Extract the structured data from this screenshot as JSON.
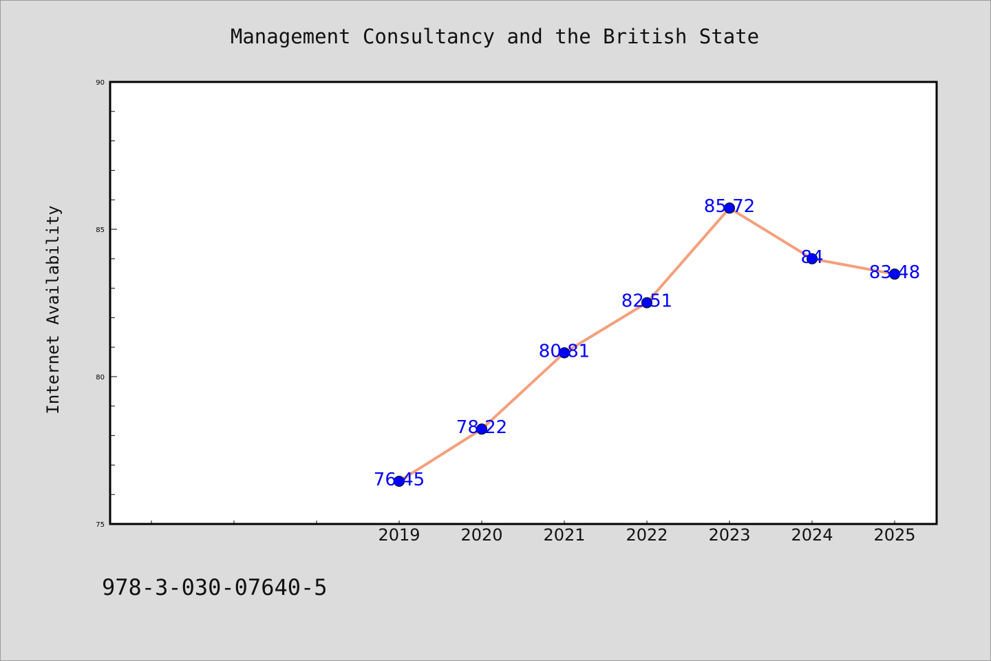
{
  "chart_data": {
    "type": "line",
    "title": "Management Consultancy and the British State",
    "xlabel": "",
    "ylabel": "Internet Availability",
    "x": [
      "2019",
      "2020",
      "2021",
      "2022",
      "2023",
      "2024",
      "2025"
    ],
    "values": [
      76.45,
      78.22,
      80.81,
      82.51,
      85.72,
      84,
      83.48
    ],
    "data_labels": [
      "76.45",
      "78.22",
      "80.81",
      "82.51",
      "85.72",
      "84",
      "83.48"
    ],
    "ylim": [
      75,
      90
    ],
    "yticks": [
      "75",
      "80",
      "85",
      "90"
    ],
    "grid": false,
    "line_color": "#f4a07c",
    "marker_color": "#0000ff",
    "label_color": "#0000ff"
  },
  "footer_text": "978-3-030-07640-5"
}
